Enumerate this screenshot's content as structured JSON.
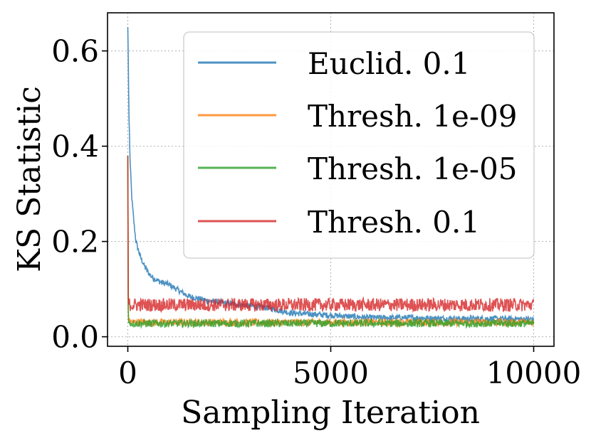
{
  "chart_data": {
    "type": "line",
    "title": "",
    "xlabel": "Sampling Iteration",
    "ylabel": "KS Statistic",
    "xlim": [
      -500,
      10500
    ],
    "ylim": [
      -0.02,
      0.68
    ],
    "xticks": [
      0,
      5000,
      10000
    ],
    "xtick_labels": [
      "0",
      "5000",
      "10000"
    ],
    "yticks": [
      0.0,
      0.2,
      0.4,
      0.6
    ],
    "ytick_labels": [
      "0.0",
      "0.2",
      "0.4",
      "0.6"
    ],
    "grid": true,
    "legend_position": "top-right",
    "series": [
      {
        "name": "Euclid. 0.1",
        "color": "#1f77b4",
        "x": [
          0,
          30,
          60,
          100,
          150,
          200,
          300,
          400,
          500,
          600,
          800,
          1000,
          1200,
          1500,
          2000,
          2500,
          3000,
          3500,
          4000,
          5000,
          6000,
          7000,
          8000,
          9000,
          10000
        ],
        "values": [
          0.65,
          0.46,
          0.36,
          0.29,
          0.24,
          0.2,
          0.17,
          0.15,
          0.135,
          0.125,
          0.115,
          0.11,
          0.1,
          0.085,
          0.075,
          0.07,
          0.065,
          0.06,
          0.05,
          0.045,
          0.04,
          0.04,
          0.038,
          0.038,
          0.037
        ],
        "noise": 0.006
      },
      {
        "name": "Thresh. 1e-09",
        "color": "#ff7f0e",
        "x": [
          0,
          10,
          20,
          40,
          100,
          500,
          1000,
          2000,
          4000,
          6000,
          8000,
          10000
        ],
        "values": [
          0.38,
          0.06,
          0.035,
          0.032,
          0.031,
          0.03,
          0.03,
          0.03,
          0.03,
          0.03,
          0.03,
          0.03
        ],
        "noise": 0.008
      },
      {
        "name": "Thresh. 1e-05",
        "color": "#2ca02c",
        "x": [
          0,
          10,
          20,
          40,
          100,
          500,
          1000,
          2000,
          4000,
          6000,
          8000,
          10000
        ],
        "values": [
          0.38,
          0.06,
          0.03,
          0.029,
          0.028,
          0.028,
          0.028,
          0.028,
          0.028,
          0.028,
          0.028,
          0.028
        ],
        "noise": 0.008
      },
      {
        "name": "Thresh. 0.1",
        "color": "#d62728",
        "x": [
          0,
          10,
          20,
          40,
          100,
          500,
          1000,
          2000,
          4000,
          6000,
          8000,
          10000
        ],
        "values": [
          0.38,
          0.09,
          0.07,
          0.068,
          0.067,
          0.067,
          0.067,
          0.067,
          0.067,
          0.067,
          0.067,
          0.067
        ],
        "noise": 0.014
      }
    ]
  }
}
